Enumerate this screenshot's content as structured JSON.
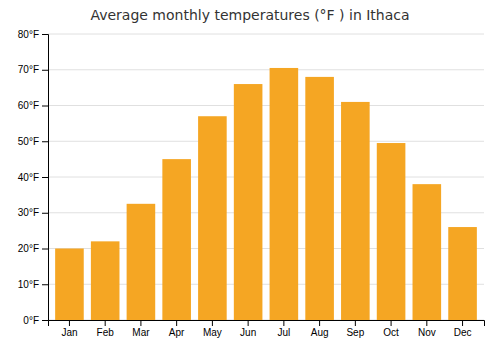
{
  "chart_data": {
    "type": "bar",
    "title": "Average monthly temperatures (°F ) in Ithaca",
    "categories": [
      "Jan",
      "Feb",
      "Mar",
      "Apr",
      "May",
      "Jun",
      "Jul",
      "Aug",
      "Sep",
      "Oct",
      "Nov",
      "Dec"
    ],
    "values": [
      20.0,
      22.0,
      32.5,
      45.0,
      57.0,
      66.0,
      70.5,
      68.0,
      61.0,
      49.5,
      38.0,
      26.0
    ],
    "color": "#F5A623",
    "ylim": [
      0,
      80
    ],
    "yticks": [
      {
        "value": 0,
        "label": "0°F"
      },
      {
        "value": 10,
        "label": "10°F"
      },
      {
        "value": 20,
        "label": "20°F"
      },
      {
        "value": 30,
        "label": "30°F"
      },
      {
        "value": 40,
        "label": "40°F"
      },
      {
        "value": 50,
        "label": "50°F"
      },
      {
        "value": 60,
        "label": "60°F"
      },
      {
        "value": 70,
        "label": "70°F"
      },
      {
        "value": 80,
        "label": "80°F"
      }
    ],
    "grid": true
  }
}
